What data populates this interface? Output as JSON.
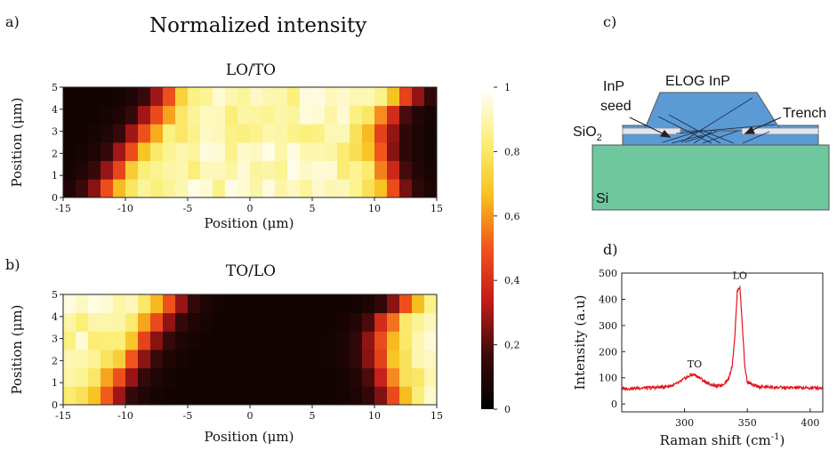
{
  "figure": {
    "main_title": "Normalized intensity",
    "panel_a": "a)",
    "panel_b": "b)",
    "panel_c": "c)",
    "panel_d": "d)"
  },
  "diagram": {
    "elog": "ELOG InP",
    "inp": "InP",
    "seed": "seed",
    "sio2_main": "SiO",
    "sio2_sub": "2",
    "trench": "Trench",
    "si": "Si",
    "colors": {
      "inp": "#5b9bd5",
      "sio2": "#dfe7f2",
      "si": "#6fc79e"
    }
  },
  "chart_data": [
    {
      "type": "heatmap",
      "title": "LO/TO",
      "xlabel": "Position (μm)",
      "ylabel": "Position (μm)",
      "xlim": [
        -15,
        15
      ],
      "ylim": [
        0,
        5
      ],
      "x_ticks": [
        "-15",
        "-10",
        "-5",
        "0",
        "5",
        "10",
        "15"
      ],
      "y_ticks": [
        "0",
        "1",
        "2",
        "3",
        "4",
        "5"
      ],
      "columns": 30,
      "rows": 6,
      "profile": "intensity ~0.05 for x < left edge, rising through red/orange to ~0.9 plateau, falling to ~0.05 after right edge",
      "left_edge_by_row": [
        -11.5,
        -10.5,
        -9.5,
        -8.5,
        -7.5,
        -6.5
      ],
      "right_edge_by_row": [
        11.5,
        11.0,
        10.5,
        10.5,
        11.0,
        12.5
      ]
    },
    {
      "type": "heatmap",
      "title": "TO/LO",
      "xlabel": "Position (μm)",
      "ylabel": "Position (μm)",
      "xlim": [
        -15,
        15
      ],
      "ylim": [
        0,
        5
      ],
      "x_ticks": [
        "-15",
        "-10",
        "-5",
        "0",
        "5",
        "10",
        "15"
      ],
      "y_ticks": [
        "0",
        "1",
        "2",
        "3",
        "4",
        "5"
      ],
      "columns": 30,
      "rows": 6,
      "profile": "intensity ~0.85 for x < left edge, falling to ~0.05 in the middle, rising to ~0.9 after right edge",
      "left_edge_by_row": [
        -11.5,
        -10.5,
        -9.5,
        -8.5,
        -7.5,
        -6.5
      ],
      "right_edge_by_row": [
        11.5,
        11.0,
        10.5,
        10.5,
        11.0,
        12.5
      ]
    },
    {
      "type": "colorbar",
      "range": [
        0,
        1
      ],
      "tick_labels": [
        "0",
        "0,2",
        "0,4",
        "0,6",
        "0,8",
        "1"
      ],
      "colormap": [
        "#000000",
        "#3b0a0a",
        "#c01a1a",
        "#f2541c",
        "#f7c21f",
        "#fbf07a",
        "#ffffff"
      ]
    },
    {
      "type": "line",
      "xlabel": "Raman shift (cm",
      "xlabel_sup": "-1",
      "xlabel_end": ")",
      "ylabel": "Intensity (a.u)",
      "xlim": [
        250,
        410
      ],
      "ylim": [
        -30,
        500
      ],
      "x_ticks": [
        300,
        350,
        400
      ],
      "y_ticks": [
        0,
        100,
        200,
        300,
        400,
        500
      ],
      "color": "#e0141c",
      "series": [
        {
          "x": [
            250,
            260,
            270,
            280,
            290,
            295,
            300,
            305,
            308,
            312,
            318,
            325,
            330,
            335,
            338,
            340,
            342,
            344,
            346,
            348,
            350,
            355,
            360,
            370,
            380,
            390,
            400,
            410
          ],
          "y": [
            58,
            60,
            62,
            64,
            70,
            80,
            97,
            110,
            112,
            100,
            80,
            68,
            72,
            95,
            150,
            260,
            430,
            450,
            300,
            140,
            85,
            70,
            66,
            64,
            62,
            62,
            61,
            62
          ]
        }
      ],
      "annotations": [
        {
          "text": "TO",
          "x": 308,
          "y": 112
        },
        {
          "text": "LO",
          "x": 344,
          "y": 450
        }
      ]
    }
  ]
}
